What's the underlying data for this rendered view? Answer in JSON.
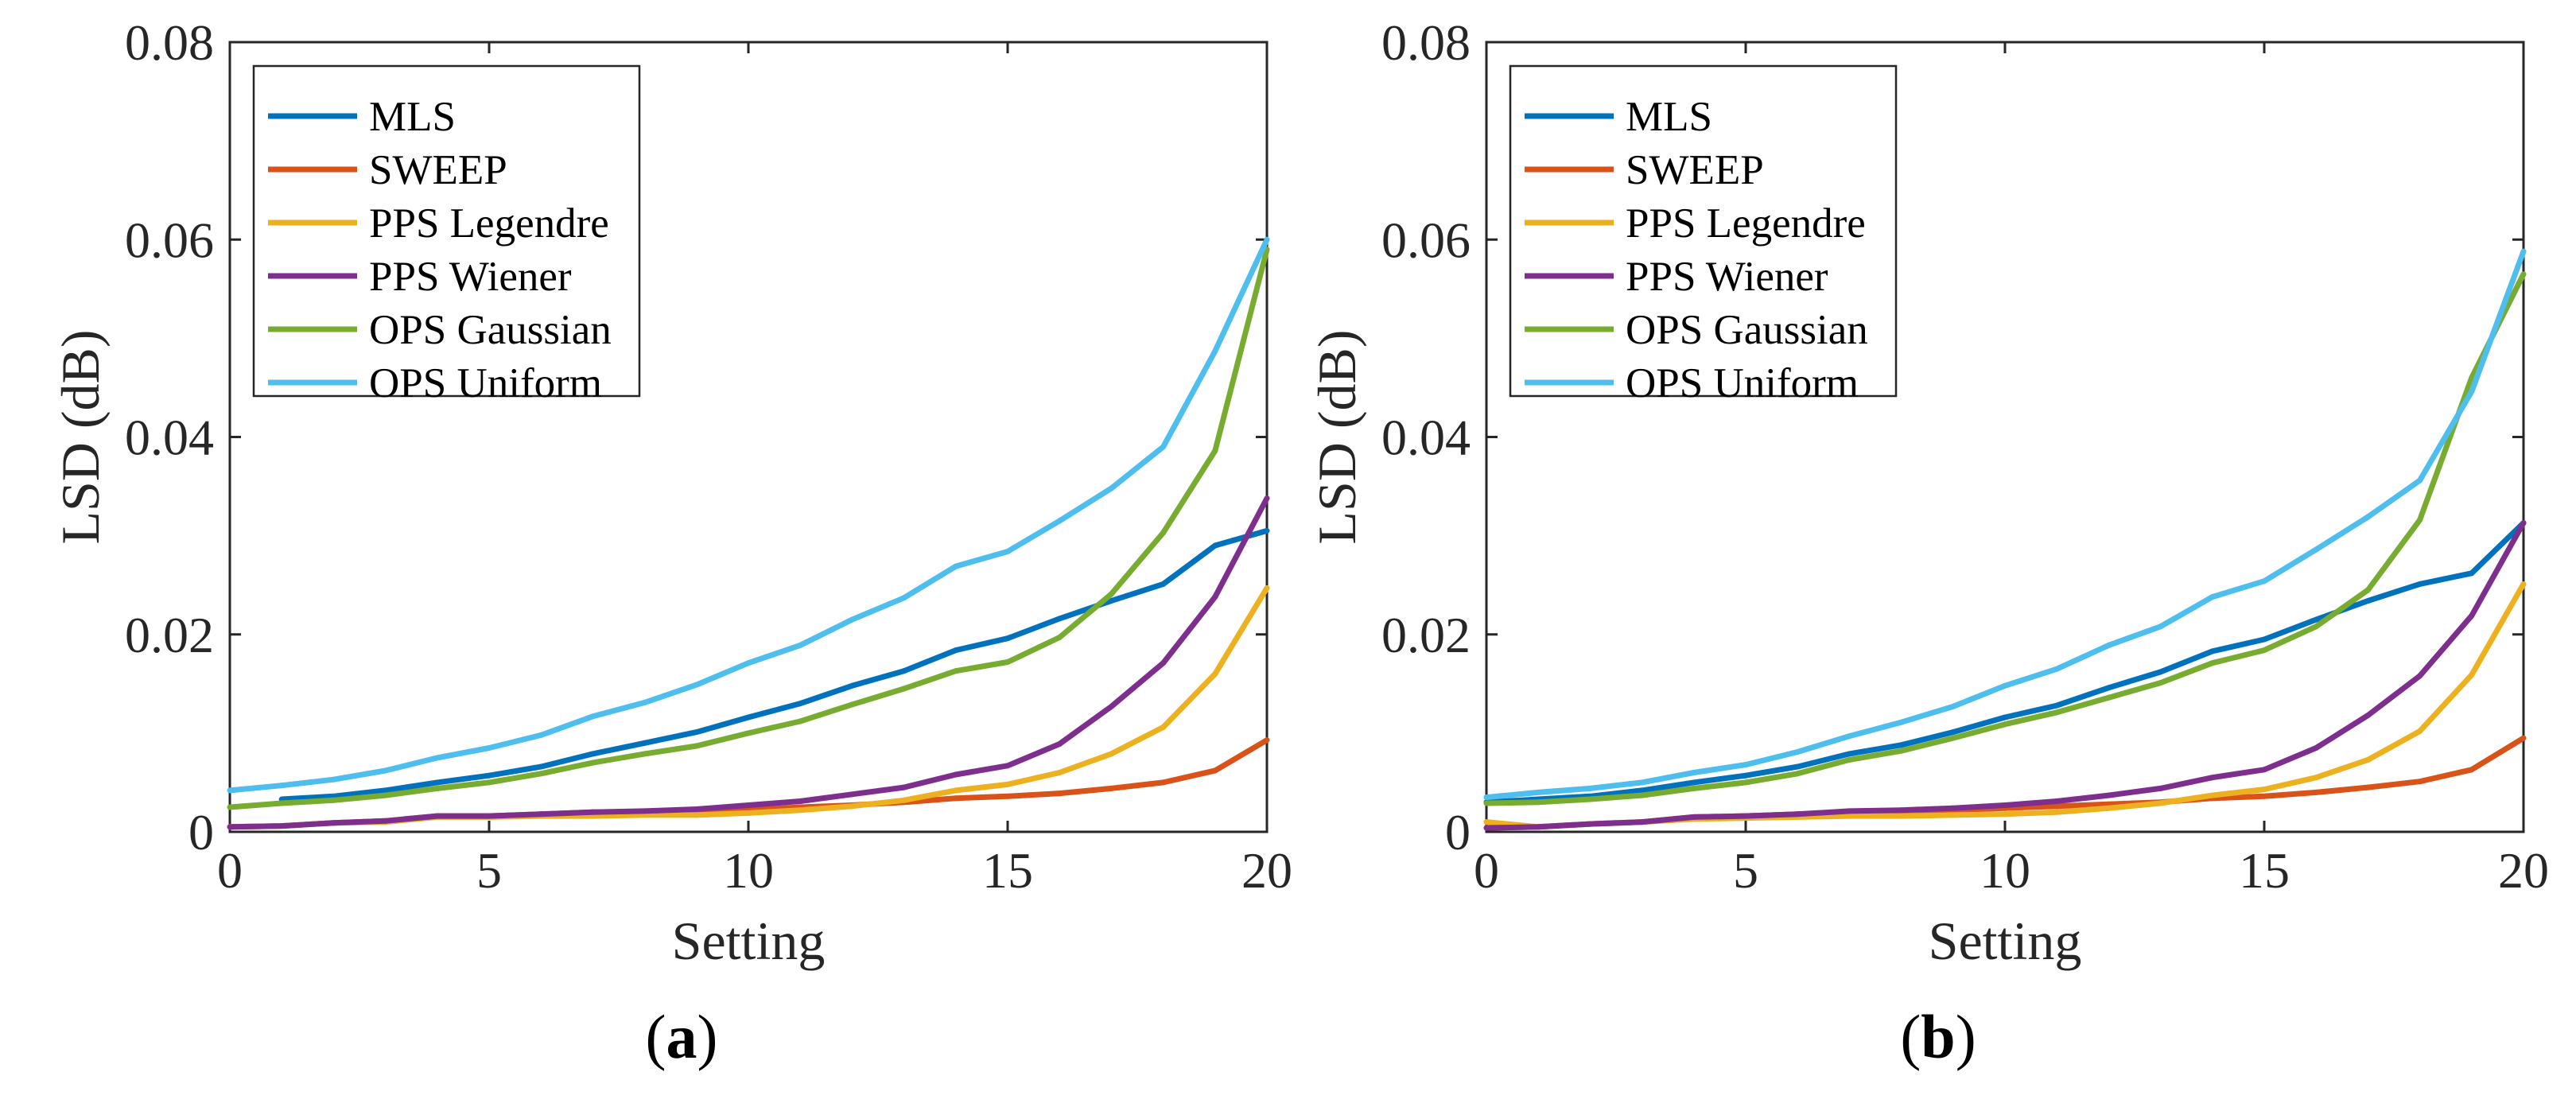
{
  "chart_data": [
    {
      "type": "line",
      "panel_label": {
        "open": "(",
        "letter": "a",
        "close": ")"
      },
      "xlabel": "Setting",
      "ylabel": "LSD (dB)",
      "xlim": [
        0,
        20
      ],
      "ylim": [
        0,
        0.08
      ],
      "xticks": [
        0,
        5,
        10,
        15,
        20
      ],
      "xtick_labels": [
        "0",
        "5",
        "10",
        "15",
        "20"
      ],
      "yticks": [
        0,
        0.02,
        0.04,
        0.06,
        0.08
      ],
      "ytick_labels": [
        "0",
        "0.02",
        "0.04",
        "0.06",
        "0.08"
      ],
      "grid": false,
      "legend_position": "top-left",
      "x": [
        0,
        1,
        2,
        3,
        4,
        5,
        6,
        7,
        8,
        9,
        10,
        11,
        12,
        13,
        14,
        15,
        16,
        17,
        18,
        19,
        20
      ],
      "series": [
        {
          "name": "MLS",
          "color": "#0072BD",
          "start_index": 1,
          "values": [
            null,
            0.0033,
            0.0036,
            0.0042,
            0.005,
            0.0057,
            0.0066,
            0.0079,
            0.009,
            0.0101,
            0.0116,
            0.013,
            0.0148,
            0.0163,
            0.0184,
            0.0196,
            0.0216,
            0.0234,
            0.0251,
            0.029,
            0.0305
          ]
        },
        {
          "name": "SWEEP",
          "color": "#D95319",
          "values": [
            0.0005,
            0.0006,
            0.0009,
            0.0011,
            0.0016,
            0.0016,
            0.0018,
            0.002,
            0.002,
            0.0021,
            0.0022,
            0.0025,
            0.0027,
            0.003,
            0.0034,
            0.0036,
            0.0039,
            0.0044,
            0.005,
            0.0062,
            0.0093
          ]
        },
        {
          "name": "PPS Legendre",
          "color": "#EDB120",
          "values": [
            0.0005,
            0.0006,
            0.0009,
            0.001,
            0.0015,
            0.0015,
            0.0016,
            0.0016,
            0.0017,
            0.0017,
            0.0019,
            0.0022,
            0.0026,
            0.0032,
            0.0042,
            0.0048,
            0.006,
            0.0079,
            0.0106,
            0.016,
            0.0247
          ]
        },
        {
          "name": "PPS Wiener",
          "color": "#7E2F8E",
          "values": [
            0.0005,
            0.0006,
            0.0009,
            0.0011,
            0.0016,
            0.0016,
            0.0018,
            0.002,
            0.0021,
            0.0023,
            0.0027,
            0.0031,
            0.0038,
            0.0045,
            0.0058,
            0.0067,
            0.0089,
            0.0127,
            0.0171,
            0.0238,
            0.0338
          ]
        },
        {
          "name": "OPS Gaussian",
          "color": "#77AC30",
          "values": [
            0.0025,
            0.0029,
            0.0032,
            0.0037,
            0.0044,
            0.005,
            0.0059,
            0.007,
            0.0079,
            0.0087,
            0.01,
            0.0112,
            0.0129,
            0.0145,
            0.0163,
            0.0172,
            0.0197,
            0.0241,
            0.0303,
            0.0386,
            0.059
          ]
        },
        {
          "name": "OPS Uniform",
          "color": "#4DBEEE",
          "values": [
            0.0042,
            0.0047,
            0.0053,
            0.0062,
            0.0075,
            0.0085,
            0.0098,
            0.0117,
            0.0131,
            0.0149,
            0.0171,
            0.0189,
            0.0215,
            0.0237,
            0.0269,
            0.0284,
            0.0315,
            0.0348,
            0.039,
            0.0487,
            0.06
          ]
        }
      ]
    },
    {
      "type": "line",
      "panel_label": {
        "open": "(",
        "letter": "b",
        "close": ")"
      },
      "xlabel": "Setting",
      "ylabel": "LSD (dB)",
      "xlim": [
        0,
        20
      ],
      "ylim": [
        0,
        0.08
      ],
      "xticks": [
        0,
        5,
        10,
        15,
        20
      ],
      "xtick_labels": [
        "0",
        "5",
        "10",
        "15",
        "20"
      ],
      "yticks": [
        0,
        0.02,
        0.04,
        0.06,
        0.08
      ],
      "ytick_labels": [
        "0",
        "0.02",
        "0.04",
        "0.06",
        "0.08"
      ],
      "grid": false,
      "legend_position": "top-left",
      "x": [
        0,
        1,
        2,
        3,
        4,
        5,
        6,
        7,
        8,
        9,
        10,
        11,
        12,
        13,
        14,
        15,
        16,
        17,
        18,
        19,
        20
      ],
      "series": [
        {
          "name": "MLS",
          "color": "#0072BD",
          "values": [
            0.003,
            0.0033,
            0.0036,
            0.0042,
            0.005,
            0.0057,
            0.0066,
            0.0079,
            0.0088,
            0.0101,
            0.0116,
            0.0128,
            0.0146,
            0.0162,
            0.0183,
            0.0195,
            0.0215,
            0.0234,
            0.0251,
            0.0262,
            0.0313
          ]
        },
        {
          "name": "SWEEP",
          "color": "#D95319",
          "values": [
            0.0004,
            0.0005,
            0.0008,
            0.001,
            0.0015,
            0.0016,
            0.0018,
            0.002,
            0.0021,
            0.0022,
            0.0024,
            0.0026,
            0.0028,
            0.003,
            0.0034,
            0.0036,
            0.004,
            0.0045,
            0.0051,
            0.0063,
            0.0095
          ]
        },
        {
          "name": "PPS Legendre",
          "color": "#EDB120",
          "values": [
            0.001,
            0.0005,
            0.0008,
            0.001,
            0.0013,
            0.0014,
            0.0015,
            0.0016,
            0.0016,
            0.0017,
            0.0018,
            0.002,
            0.0024,
            0.0029,
            0.0037,
            0.0043,
            0.0055,
            0.0073,
            0.0102,
            0.0159,
            0.0251
          ]
        },
        {
          "name": "PPS Wiener",
          "color": "#7E2F8E",
          "values": [
            0.0004,
            0.0005,
            0.0008,
            0.001,
            0.0015,
            0.0016,
            0.0018,
            0.0021,
            0.0022,
            0.0024,
            0.0027,
            0.0031,
            0.0037,
            0.0044,
            0.0055,
            0.0063,
            0.0085,
            0.0118,
            0.0158,
            0.0219,
            0.0313
          ]
        },
        {
          "name": "OPS Gaussian",
          "color": "#77AC30",
          "values": [
            0.0029,
            0.003,
            0.0033,
            0.0037,
            0.0044,
            0.005,
            0.0059,
            0.0073,
            0.0082,
            0.0095,
            0.0109,
            0.0121,
            0.0136,
            0.0151,
            0.0171,
            0.0184,
            0.0208,
            0.0245,
            0.0316,
            0.046,
            0.0565
          ]
        },
        {
          "name": "OPS Uniform",
          "color": "#4DBEEE",
          "values": [
            0.0035,
            0.004,
            0.0044,
            0.005,
            0.006,
            0.0068,
            0.0081,
            0.0097,
            0.0111,
            0.0127,
            0.0148,
            0.0165,
            0.0189,
            0.0208,
            0.0238,
            0.0254,
            0.0286,
            0.0319,
            0.0356,
            0.0446,
            0.0588
          ]
        }
      ]
    }
  ]
}
